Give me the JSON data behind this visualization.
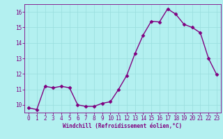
{
  "x": [
    0,
    1,
    2,
    3,
    4,
    5,
    6,
    7,
    8,
    9,
    10,
    11,
    12,
    13,
    14,
    15,
    16,
    17,
    18,
    19,
    20,
    21,
    22,
    23
  ],
  "y": [
    9.8,
    9.7,
    11.2,
    11.1,
    11.2,
    11.1,
    10.0,
    9.9,
    9.9,
    10.1,
    10.2,
    11.0,
    11.9,
    13.3,
    14.5,
    15.4,
    15.35,
    16.2,
    15.85,
    15.2,
    15.0,
    14.65,
    13.0,
    11.95
  ],
  "xlabel": "Windchill (Refroidissement éolien,°C)",
  "xlim": [
    -0.5,
    23.5
  ],
  "ylim": [
    9.5,
    16.5
  ],
  "yticks": [
    10,
    11,
    12,
    13,
    14,
    15,
    16
  ],
  "xticks": [
    0,
    1,
    2,
    3,
    4,
    5,
    6,
    7,
    8,
    9,
    10,
    11,
    12,
    13,
    14,
    15,
    16,
    17,
    18,
    19,
    20,
    21,
    22,
    23
  ],
  "line_color": "#800080",
  "marker_color": "#800080",
  "bg_color": "#b3f0f0",
  "grid_color": "#99dddd",
  "spine_color": "#800080",
  "tick_color": "#800080",
  "label_fontsize": 5.5,
  "tick_fontsize": 5.5,
  "marker_size": 2.5,
  "line_width": 1.0
}
